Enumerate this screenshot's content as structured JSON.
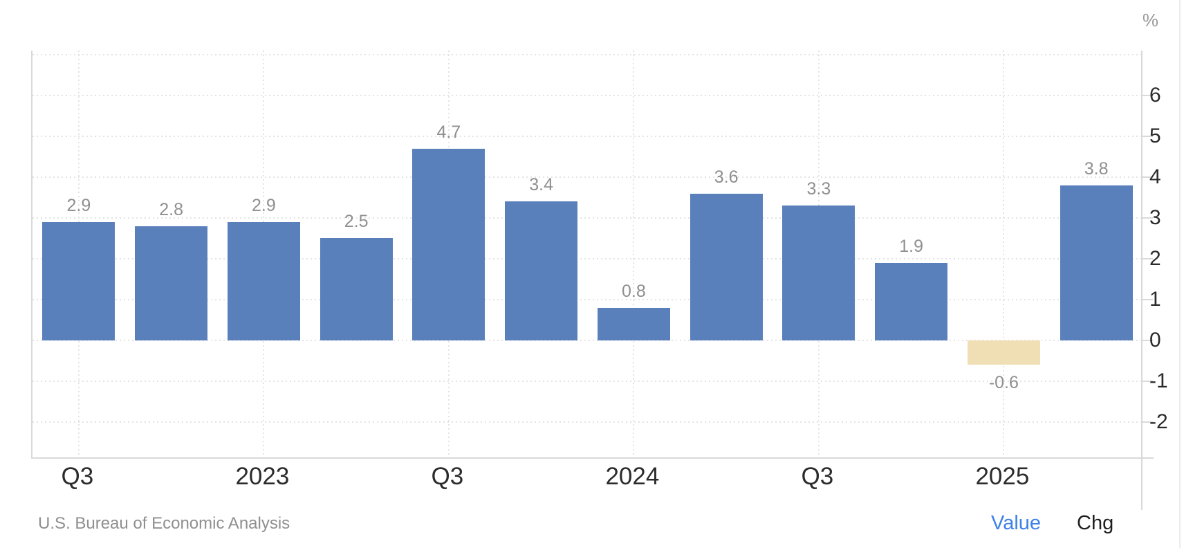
{
  "chart_data": {
    "type": "bar",
    "unit": "%",
    "values": [
      2.9,
      2.8,
      2.9,
      2.5,
      4.7,
      3.4,
      0.8,
      3.6,
      3.3,
      1.9,
      -0.6,
      3.8
    ],
    "bar_labels": [
      "2.9",
      "2.8",
      "2.9",
      "2.5",
      "4.7",
      "3.4",
      "0.8",
      "3.6",
      "3.3",
      "1.9",
      "-0.6",
      "3.8"
    ],
    "highlight_index": 10,
    "x_ticks": [
      {
        "bar_index": 0,
        "label": "Q3"
      },
      {
        "bar_index": 2,
        "label": "2023"
      },
      {
        "bar_index": 4,
        "label": "Q3"
      },
      {
        "bar_index": 6,
        "label": "2024"
      },
      {
        "bar_index": 8,
        "label": "Q3"
      },
      {
        "bar_index": 10,
        "label": "2025"
      }
    ],
    "y_ticks": [
      {
        "value": 6,
        "label": "6"
      },
      {
        "value": 5,
        "label": "5"
      },
      {
        "value": 4,
        "label": "4"
      },
      {
        "value": 3,
        "label": "3"
      },
      {
        "value": 2,
        "label": "2"
      },
      {
        "value": 1,
        "label": "1"
      },
      {
        "value": 0,
        "label": "0"
      },
      {
        "value": -1,
        "label": "-1"
      },
      {
        "value": -2,
        "label": "-2"
      }
    ],
    "gridline_values": [
      7,
      6,
      5,
      4,
      3,
      2,
      1,
      0,
      -1,
      -2
    ],
    "ylim": [
      -2.9,
      7.1
    ],
    "grid": true,
    "colors": {
      "bar": "#5A80BC",
      "bar_highlight": "#F0DFB5",
      "grid": "#E3E3E3",
      "axis": "#D9D9D9",
      "bar_label": "#8F8F8F",
      "tick_label": "#2B2B2B",
      "unit_label": "#999999"
    }
  },
  "footer": {
    "source": "U.S. Bureau of Economic Analysis",
    "value_label": "Value",
    "chg_label": "Chg",
    "colors": {
      "source": "#8F8F8F",
      "value_link": "#3C80E8",
      "chg_link": "#1F1F1F"
    }
  }
}
